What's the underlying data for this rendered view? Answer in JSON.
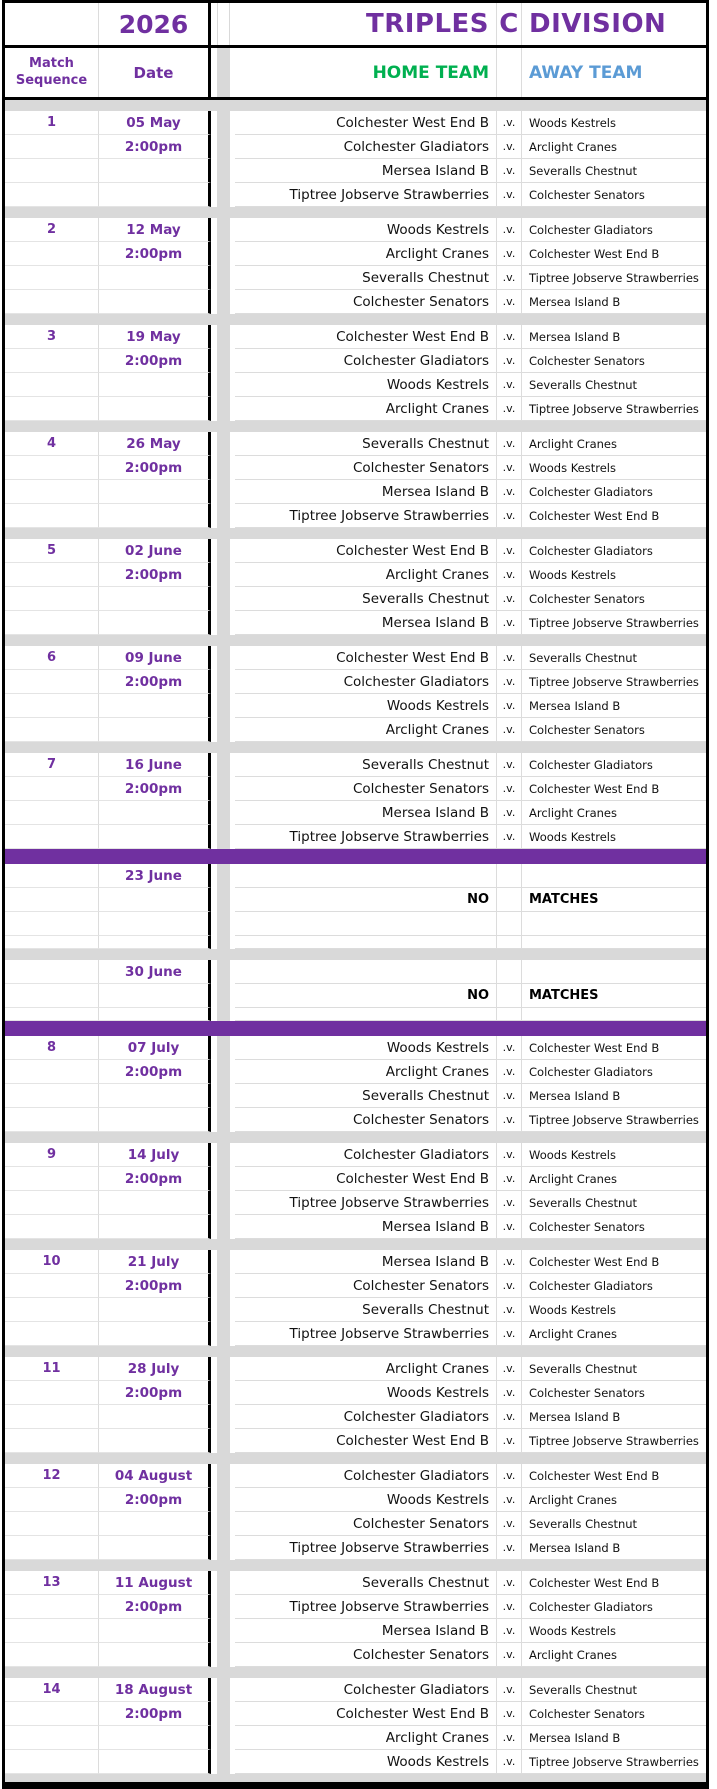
{
  "title": {
    "year": "2026",
    "part1": "TRIPLES",
    "part2": "C",
    "part3": "DIVISION"
  },
  "headers": {
    "match_sequence_line1": "Match",
    "match_sequence_line2": "Sequence",
    "date": "Date",
    "home": "HOME TEAM",
    "away": "AWAY TEAM",
    "versus": ".v."
  },
  "no_matches": {
    "no": "NO",
    "matches": "MATCHES"
  },
  "colors": {
    "purple_text": "#7030A0",
    "purple_band": "#7030A0",
    "green_home": "#00B050",
    "blue_away": "#5B9BD5",
    "gray_band": "#D9D9D9",
    "black": "#000000"
  },
  "teams": [
    "Colchester West End B",
    "Woods Kestrels",
    "Colchester Gladiators",
    "Arclight Cranes",
    "Mersea Island B",
    "Severalls Chestnut",
    "Tiptree Jobserve Strawberries",
    "Colchester Senators"
  ],
  "sections": [
    {
      "kind": "spacer"
    },
    {
      "kind": "round",
      "seq": "1",
      "date": "05 May",
      "time": "2:00pm",
      "fixtures": [
        {
          "home": "Colchester West End B",
          "away": "Woods Kestrels"
        },
        {
          "home": "Colchester Gladiators",
          "away": "Arclight Cranes"
        },
        {
          "home": "Mersea Island B",
          "away": "Severalls Chestnut"
        },
        {
          "home": "Tiptree Jobserve Strawberries",
          "away": "Colchester Senators"
        }
      ]
    },
    {
      "kind": "spacer"
    },
    {
      "kind": "round",
      "seq": "2",
      "date": "12 May",
      "time": "2:00pm",
      "fixtures": [
        {
          "home": "Woods Kestrels",
          "away": "Colchester Gladiators"
        },
        {
          "home": "Arclight Cranes",
          "away": "Colchester West End B"
        },
        {
          "home": "Severalls Chestnut",
          "away": "Tiptree Jobserve Strawberries"
        },
        {
          "home": "Colchester Senators",
          "away": "Mersea Island B"
        }
      ]
    },
    {
      "kind": "spacer"
    },
    {
      "kind": "round",
      "seq": "3",
      "date": "19 May",
      "time": "2:00pm",
      "fixtures": [
        {
          "home": "Colchester West End B",
          "away": "Mersea Island B"
        },
        {
          "home": "Colchester Gladiators",
          "away": "Colchester Senators"
        },
        {
          "home": "Woods Kestrels",
          "away": "Severalls Chestnut"
        },
        {
          "home": "Arclight Cranes",
          "away": "Tiptree Jobserve Strawberries"
        }
      ]
    },
    {
      "kind": "spacer"
    },
    {
      "kind": "round",
      "seq": "4",
      "date": "26 May",
      "time": "2:00pm",
      "fixtures": [
        {
          "home": "Severalls Chestnut",
          "away": "Arclight Cranes"
        },
        {
          "home": "Colchester Senators",
          "away": "Woods Kestrels"
        },
        {
          "home": "Mersea Island B",
          "away": "Colchester Gladiators"
        },
        {
          "home": "Tiptree Jobserve Strawberries",
          "away": "Colchester West End B"
        }
      ]
    },
    {
      "kind": "spacer"
    },
    {
      "kind": "round",
      "seq": "5",
      "date": "02 June",
      "time": "2:00pm",
      "fixtures": [
        {
          "home": "Colchester West End B",
          "away": "Colchester Gladiators"
        },
        {
          "home": "Arclight Cranes",
          "away": "Woods Kestrels"
        },
        {
          "home": "Severalls Chestnut",
          "away": "Colchester Senators"
        },
        {
          "home": "Mersea Island B",
          "away": "Tiptree Jobserve Strawberries"
        }
      ]
    },
    {
      "kind": "spacer"
    },
    {
      "kind": "round",
      "seq": "6",
      "date": "09 June",
      "time": "2:00pm",
      "fixtures": [
        {
          "home": "Colchester West End B",
          "away": "Severalls Chestnut"
        },
        {
          "home": "Colchester Gladiators",
          "away": "Tiptree Jobserve Strawberries"
        },
        {
          "home": "Woods Kestrels",
          "away": "Mersea Island B"
        },
        {
          "home": "Arclight Cranes",
          "away": "Colchester Senators"
        }
      ]
    },
    {
      "kind": "spacer"
    },
    {
      "kind": "round",
      "seq": "7",
      "date": "16 June",
      "time": "2:00pm",
      "fixtures": [
        {
          "home": "Severalls Chestnut",
          "away": "Colchester Gladiators"
        },
        {
          "home": "Colchester Senators",
          "away": "Colchester West End B"
        },
        {
          "home": "Mersea Island B",
          "away": "Arclight Cranes"
        },
        {
          "home": "Tiptree Jobserve Strawberries",
          "away": "Woods Kestrels"
        }
      ]
    },
    {
      "kind": "band"
    },
    {
      "kind": "no_matches",
      "date": "23 June",
      "trailing": [
        "tall",
        "short"
      ]
    },
    {
      "kind": "spacer"
    },
    {
      "kind": "no_matches",
      "date": "30 June",
      "trailing": [
        "short"
      ]
    },
    {
      "kind": "band"
    },
    {
      "kind": "round",
      "seq": "8",
      "date": "07 July",
      "time": "2:00pm",
      "fixtures": [
        {
          "home": "Woods Kestrels",
          "away": "Colchester West End B"
        },
        {
          "home": "Arclight Cranes",
          "away": "Colchester Gladiators"
        },
        {
          "home": "Severalls Chestnut",
          "away": "Mersea Island B"
        },
        {
          "home": "Colchester Senators",
          "away": "Tiptree Jobserve Strawberries"
        }
      ]
    },
    {
      "kind": "spacer"
    },
    {
      "kind": "round",
      "seq": "9",
      "date": "14 July",
      "time": "2:00pm",
      "fixtures": [
        {
          "home": "Colchester Gladiators",
          "away": "Woods Kestrels"
        },
        {
          "home": "Colchester West End B",
          "away": "Arclight Cranes"
        },
        {
          "home": "Tiptree Jobserve Strawberries",
          "away": "Severalls Chestnut"
        },
        {
          "home": "Mersea Island B",
          "away": "Colchester Senators"
        }
      ]
    },
    {
      "kind": "spacer"
    },
    {
      "kind": "round",
      "seq": "10",
      "date": "21 July",
      "time": "2:00pm",
      "fixtures": [
        {
          "home": "Mersea Island B",
          "away": "Colchester West End B"
        },
        {
          "home": "Colchester Senators",
          "away": "Colchester Gladiators"
        },
        {
          "home": "Severalls Chestnut",
          "away": "Woods Kestrels"
        },
        {
          "home": "Tiptree Jobserve Strawberries",
          "away": "Arclight Cranes"
        }
      ]
    },
    {
      "kind": "spacer"
    },
    {
      "kind": "round",
      "seq": "11",
      "date": "28 July",
      "time": "2:00pm",
      "fixtures": [
        {
          "home": "Arclight Cranes",
          "away": "Severalls Chestnut"
        },
        {
          "home": "Woods Kestrels",
          "away": "Colchester Senators"
        },
        {
          "home": "Colchester Gladiators",
          "away": "Mersea Island B"
        },
        {
          "home": "Colchester West End B",
          "away": "Tiptree Jobserve Strawberries"
        }
      ]
    },
    {
      "kind": "spacer"
    },
    {
      "kind": "round",
      "seq": "12",
      "date": "04 August",
      "time": "2:00pm",
      "fixtures": [
        {
          "home": "Colchester Gladiators",
          "away": "Colchester West End B"
        },
        {
          "home": "Woods Kestrels",
          "away": "Arclight Cranes"
        },
        {
          "home": "Colchester Senators",
          "away": "Severalls Chestnut"
        },
        {
          "home": "Tiptree Jobserve Strawberries",
          "away": "Mersea Island B"
        }
      ]
    },
    {
      "kind": "spacer"
    },
    {
      "kind": "round",
      "seq": "13",
      "date": "11 August",
      "time": "2:00pm",
      "fixtures": [
        {
          "home": "Severalls Chestnut",
          "away": "Colchester West End B"
        },
        {
          "home": "Tiptree Jobserve Strawberries",
          "away": "Colchester Gladiators"
        },
        {
          "home": "Mersea Island B",
          "away": "Woods Kestrels"
        },
        {
          "home": "Colchester Senators",
          "away": "Arclight Cranes"
        }
      ]
    },
    {
      "kind": "spacer"
    },
    {
      "kind": "round",
      "seq": "14",
      "date": "18 August",
      "time": "2:00pm",
      "fixtures": [
        {
          "home": "Colchester Gladiators",
          "away": "Severalls Chestnut"
        },
        {
          "home": "Colchester West End B",
          "away": "Colchester Senators"
        },
        {
          "home": "Arclight Cranes",
          "away": "Mersea Island B"
        },
        {
          "home": "Woods Kestrels",
          "away": "Tiptree Jobserve Strawberries"
        }
      ]
    }
  ]
}
